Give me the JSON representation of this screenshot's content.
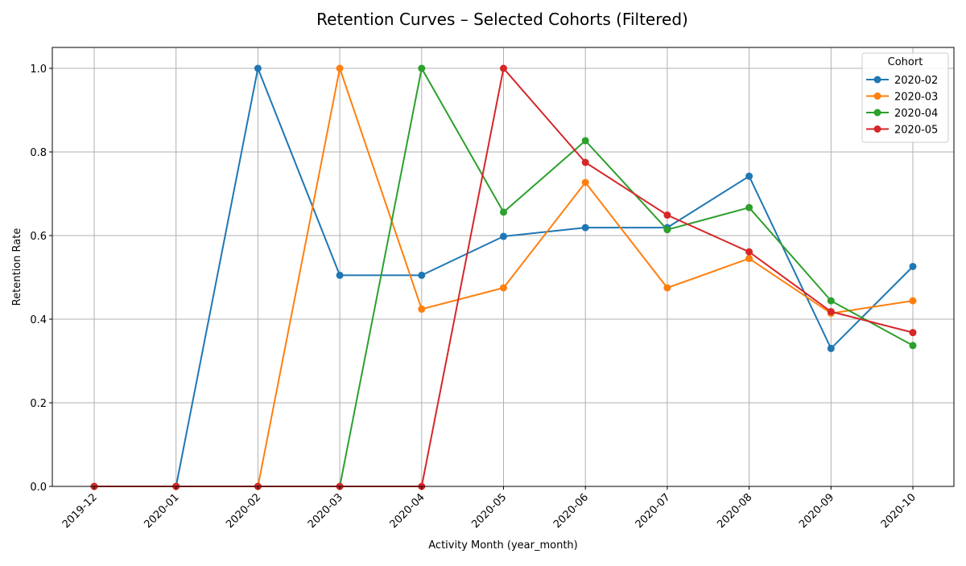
{
  "chart_data": {
    "type": "line",
    "title": "Retention Curves – Selected Cohorts (Filtered)",
    "xlabel": "Activity Month (year_month)",
    "ylabel": "Retention Rate",
    "ylim": [
      0,
      1.05
    ],
    "yticks": [
      "0.0",
      "0.2",
      "0.4",
      "0.6",
      "0.8",
      "1.0"
    ],
    "categories": [
      "2019-12",
      "2020-01",
      "2020-02",
      "2020-03",
      "2020-04",
      "2020-05",
      "2020-06",
      "2020-07",
      "2020-08",
      "2020-09",
      "2020-10"
    ],
    "grid": true,
    "legend": {
      "title": "Cohort",
      "placement": "top-right"
    },
    "series": [
      {
        "name": "2020-02",
        "color": "#1f77b4",
        "values": [
          0,
          0,
          1.0,
          0.505,
          0.505,
          0.598,
          0.619,
          0.619,
          0.742,
          0.33,
          0.526
        ]
      },
      {
        "name": "2020-03",
        "color": "#ff7f0e",
        "values": [
          0,
          0,
          0,
          1.0,
          0.424,
          0.475,
          0.727,
          0.475,
          0.545,
          0.414,
          0.444
        ]
      },
      {
        "name": "2020-04",
        "color": "#2ca02c",
        "values": [
          0,
          0,
          0,
          0,
          1.0,
          0.656,
          0.827,
          0.614,
          0.667,
          0.444,
          0.337
        ]
      },
      {
        "name": "2020-05",
        "color": "#d62728",
        "values": [
          0,
          0,
          0,
          0,
          0,
          1.0,
          0.775,
          0.649,
          0.561,
          0.418,
          0.368
        ]
      }
    ]
  }
}
